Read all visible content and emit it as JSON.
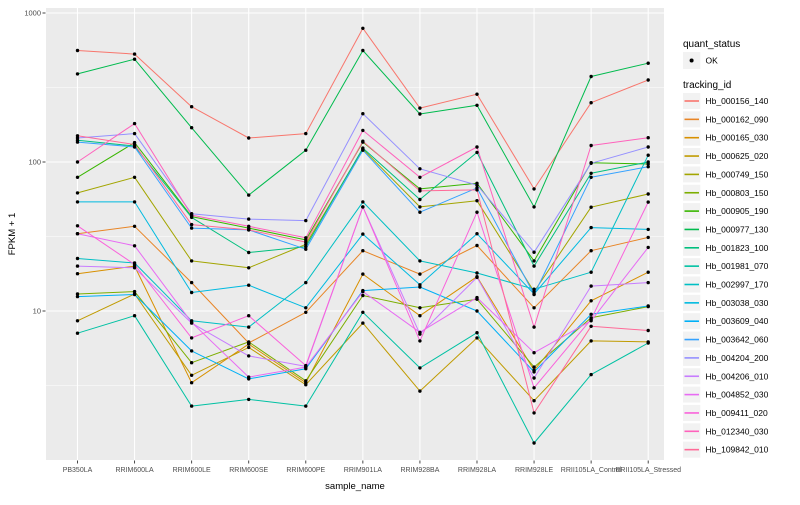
{
  "chart_data": {
    "type": "line",
    "title": "",
    "xlabel": "sample_name",
    "ylabel": "FPKM + 1",
    "y_scale": "log10",
    "ylim": [
      1,
      1080
    ],
    "y_ticks": [
      1000,
      100,
      10
    ],
    "y_minor_ticks": [
      316.23,
      31.623,
      3.1623
    ],
    "grid": "on",
    "panel_bg": "#EBEBEB",
    "grid_color": "#FFFFFF",
    "tick_label_color": "#4D4D4D",
    "point_marker": "black-dot",
    "legend_position": "right",
    "legend": {
      "quant_status_title": "quant_status",
      "ok_label": "OK",
      "tracking_id_title": "tracking_id",
      "key_bg": "#F2F2F2"
    },
    "categories": [
      "PB350LA",
      "RRIM600LA",
      "RRIM600LE",
      "RRIM600SE",
      "RRIM600PE",
      "RRIM901LA",
      "RRIM928BA",
      "RRIM928LA",
      "RRIM928LE",
      "RRII105LA_Control",
      "RRII105LA_Stressed"
    ],
    "series": [
      {
        "name": "Hb_000156_140",
        "color": "#F8766D",
        "values": [
          560,
          530,
          235,
          145,
          155,
          790,
          230,
          285,
          66,
          250,
          355
        ]
      },
      {
        "name": "Hb_000162_090",
        "color": "#E88526",
        "values": [
          33,
          37,
          15.5,
          6.1,
          9.8,
          25.4,
          17.7,
          27.5,
          10.5,
          25.4,
          31.2
        ]
      },
      {
        "name": "Hb_000165_030",
        "color": "#D89000",
        "values": [
          17.8,
          20,
          3.3,
          6.0,
          3.3,
          17.7,
          9.3,
          17,
          4.0,
          11.7,
          18.2
        ]
      },
      {
        "name": "Hb_000625_020",
        "color": "#C09B00",
        "values": [
          8.6,
          13,
          3.7,
          5.7,
          3.2,
          8.3,
          2.9,
          6.6,
          2.5,
          6.3,
          6.2
        ]
      },
      {
        "name": "Hb_000749_150",
        "color": "#A3A500",
        "values": [
          62,
          79,
          21.7,
          19.5,
          28,
          122,
          50,
          55,
          13.5,
          49.7,
          61
        ]
      },
      {
        "name": "Hb_000803_150",
        "color": "#7CAE00",
        "values": [
          13,
          13.5,
          4.5,
          6.2,
          3.4,
          12.7,
          10.5,
          12,
          4.2,
          9.0,
          10.7
        ]
      },
      {
        "name": "Hb_000905_190",
        "color": "#39B600",
        "values": [
          79,
          135,
          43,
          36,
          30,
          136,
          66,
          72,
          21.7,
          99,
          97
        ]
      },
      {
        "name": "Hb_000977_130",
        "color": "#00BB4E",
        "values": [
          390,
          490,
          170,
          60,
          120,
          560,
          210,
          240,
          50,
          375,
          460
        ]
      },
      {
        "name": "Hb_001823_100",
        "color": "#00BF7D",
        "values": [
          140,
          128,
          42.5,
          24.7,
          27,
          124,
          56,
          116,
          20,
          84,
          100
        ]
      },
      {
        "name": "Hb_001981_070",
        "color": "#00C1A3",
        "values": [
          7.1,
          9.3,
          2.3,
          2.55,
          2.3,
          9.8,
          4.15,
          7.15,
          1.3,
          3.74,
          6.1
        ]
      },
      {
        "name": "Hb_002997_170",
        "color": "#00BFC4",
        "values": [
          22.5,
          21,
          8.6,
          7.8,
          15.5,
          54,
          21.7,
          18,
          14,
          18.2,
          111
        ]
      },
      {
        "name": "Hb_003038_030",
        "color": "#00BAE0",
        "values": [
          54,
          54,
          13.3,
          14.9,
          10.5,
          32.8,
          15,
          33,
          13,
          36.3,
          35.3
        ]
      },
      {
        "name": "Hb_003609_040",
        "color": "#00B0F6",
        "values": [
          12.5,
          12.9,
          5.4,
          3.5,
          4.1,
          13.7,
          14.5,
          10,
          3.9,
          9.5,
          10.8
        ]
      },
      {
        "name": "Hb_003642_060",
        "color": "#35A2FF",
        "values": [
          136,
          126,
          36,
          35,
          26,
          120,
          46,
          67,
          12.9,
          79,
          93
        ]
      },
      {
        "name": "Hb_004204_200",
        "color": "#9590FF",
        "values": [
          145,
          155,
          45,
          41.4,
          40.4,
          211,
          90,
          70,
          24.8,
          98,
          126
        ]
      },
      {
        "name": "Hb_004206_010",
        "color": "#C77CFF",
        "values": [
          20,
          19.5,
          8.3,
          5.0,
          4.25,
          50,
          7.0,
          16.8,
          3.55,
          14.7,
          15.5
        ]
      },
      {
        "name": "Hb_004852_030",
        "color": "#E76BF3",
        "values": [
          33,
          27.4,
          8.4,
          3.6,
          4.2,
          13.5,
          7.2,
          12.3,
          5.25,
          8.6,
          26.7
        ]
      },
      {
        "name": "Hb_009411_020",
        "color": "#FA62DB",
        "values": [
          37.3,
          20.5,
          6.6,
          9.3,
          4.3,
          50,
          6.3,
          46,
          3.05,
          8.8,
          53.8
        ]
      },
      {
        "name": "Hb_012340_030",
        "color": "#FF62BC",
        "values": [
          100,
          181,
          44,
          37,
          31,
          163,
          79,
          126,
          7.8,
          129,
          145.5
        ]
      },
      {
        "name": "Hb_109842_010",
        "color": "#FF6A98",
        "values": [
          150,
          131,
          38,
          35,
          29,
          138,
          64,
          65,
          2.07,
          7.9,
          7.4
        ]
      }
    ]
  }
}
